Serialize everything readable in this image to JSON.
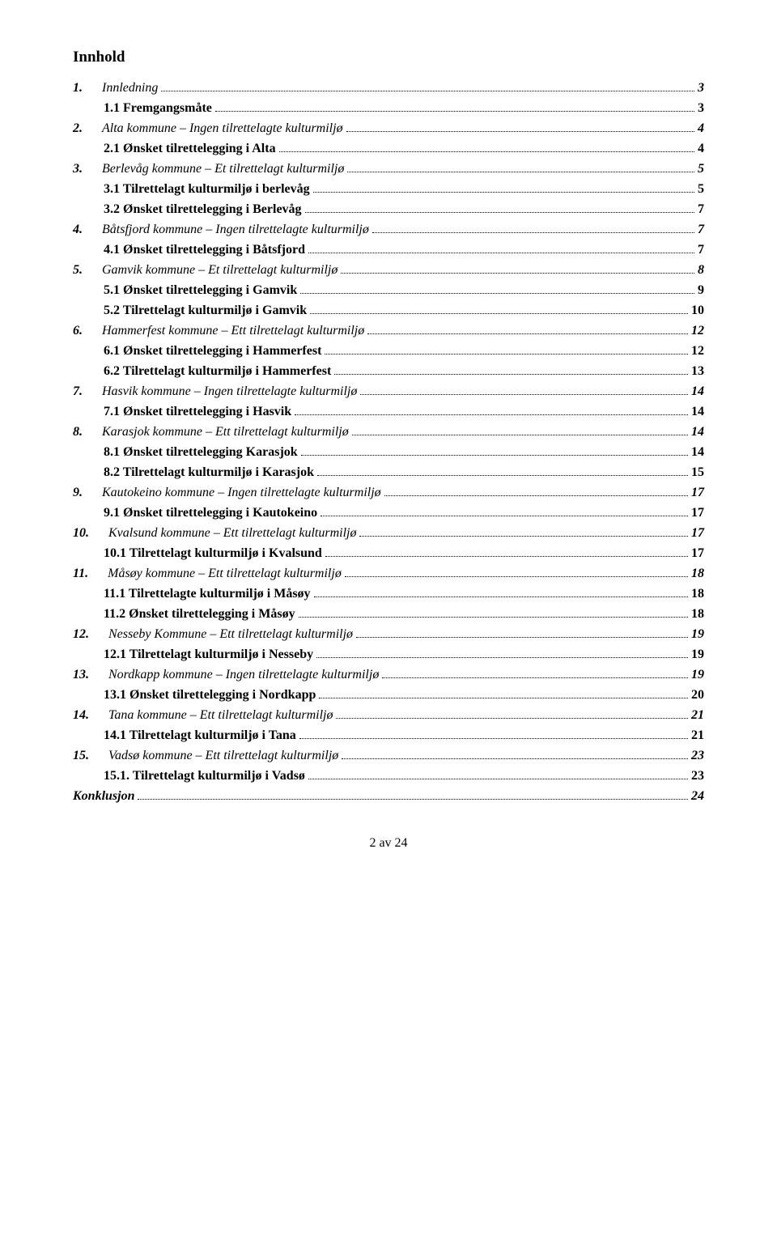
{
  "heading": "Innhold",
  "footer": "2 av 24",
  "toc": [
    {
      "level": 1,
      "num": "1.",
      "title": "Innledning",
      "page": "3"
    },
    {
      "level": 2,
      "num": "",
      "title": "1.1 Fremgangsmåte",
      "page": "3"
    },
    {
      "level": 1,
      "num": "2.",
      "title": "Alta kommune – Ingen tilrettelagte kulturmiljø",
      "page": "4"
    },
    {
      "level": 2,
      "num": "",
      "title": "2.1 Ønsket tilrettelegging i Alta",
      "page": "4"
    },
    {
      "level": 1,
      "num": "3.",
      "title": "Berlevåg kommune – Et tilrettelagt kulturmiljø",
      "page": "5"
    },
    {
      "level": 2,
      "num": "",
      "title": "3.1 Tilrettelagt kulturmiljø i berlevåg",
      "page": "5"
    },
    {
      "level": 2,
      "num": "",
      "title": "3.2 Ønsket tilrettelegging i Berlevåg",
      "page": "7"
    },
    {
      "level": 1,
      "num": "4.",
      "title": "Båtsfjord kommune – Ingen tilrettelagte kulturmiljø",
      "page": "7"
    },
    {
      "level": 2,
      "num": "",
      "title": "4.1 Ønsket tilrettelegging i Båtsfjord",
      "page": "7"
    },
    {
      "level": 1,
      "num": "5.",
      "title": "Gamvik kommune – Et tilrettelagt kulturmiljø",
      "page": "8"
    },
    {
      "level": 2,
      "num": "",
      "title": "5.1 Ønsket tilrettelegging i Gamvik",
      "page": "9"
    },
    {
      "level": 2,
      "num": "",
      "title": "5.2 Tilrettelagt kulturmiljø i Gamvik",
      "page": "10"
    },
    {
      "level": 1,
      "num": "6.",
      "title": "Hammerfest kommune – Ett tilrettelagt kulturmiljø",
      "page": "12"
    },
    {
      "level": 2,
      "num": "",
      "title": "6.1 Ønsket tilrettelegging i Hammerfest",
      "page": "12"
    },
    {
      "level": 2,
      "num": "",
      "title": "6.2 Tilrettelagt kulturmiljø i Hammerfest",
      "page": "13"
    },
    {
      "level": 1,
      "num": "7.",
      "title": "Hasvik kommune – Ingen tilrettelagte kulturmiljø",
      "page": "14"
    },
    {
      "level": 2,
      "num": "",
      "title": "7.1 Ønsket tilrettelegging i Hasvik",
      "page": "14"
    },
    {
      "level": 1,
      "num": "8.",
      "title": "Karasjok kommune – Ett tilrettelagt kulturmiljø",
      "page": "14"
    },
    {
      "level": 2,
      "num": "",
      "title": "8.1 Ønsket tilrettelegging Karasjok",
      "page": "14"
    },
    {
      "level": 2,
      "num": "",
      "title": "8.2 Tilrettelagt kulturmiljø i Karasjok",
      "page": "15"
    },
    {
      "level": 1,
      "num": "9.",
      "title": "Kautokeino kommune – Ingen tilrettelagte kulturmiljø",
      "page": "17"
    },
    {
      "level": 2,
      "num": "",
      "title": "9.1 Ønsket tilrettelegging i Kautokeino",
      "page": "17"
    },
    {
      "level": 1,
      "num": "10.",
      "title": "Kvalsund kommune – Ett tilrettelagt kulturmiljø",
      "page": "17"
    },
    {
      "level": 2,
      "num": "",
      "title": "10.1 Tilrettelagt kulturmiljø i Kvalsund",
      "page": "17"
    },
    {
      "level": 1,
      "num": "11.",
      "title": "Måsøy kommune – Ett tilrettelagt kulturmiljø",
      "page": "18"
    },
    {
      "level": 2,
      "num": "",
      "title": "11.1 Tilrettelagte kulturmiljø i Måsøy",
      "page": "18"
    },
    {
      "level": 2,
      "num": "",
      "title": "11.2 Ønsket tilrettelegging i Måsøy",
      "page": "18"
    },
    {
      "level": 1,
      "num": "12.",
      "title": "Nesseby Kommune – Ett tilrettelagt kulturmiljø",
      "page": "19"
    },
    {
      "level": 2,
      "num": "",
      "title": "12.1 Tilrettelagt kulturmiljø i Nesseby",
      "page": "19"
    },
    {
      "level": 1,
      "num": "13.",
      "title": "Nordkapp kommune – Ingen tilrettelagte kulturmiljø",
      "page": "19"
    },
    {
      "level": 2,
      "num": "",
      "title": "13.1 Ønsket tilrettelegging i Nordkapp",
      "page": "20"
    },
    {
      "level": 1,
      "num": "14.",
      "title": "Tana kommune – Ett tilrettelagt kulturmiljø",
      "page": "21"
    },
    {
      "level": 2,
      "num": "",
      "title": "14.1 Tilrettelagt kulturmiljø i Tana",
      "page": "21"
    },
    {
      "level": 1,
      "num": "15.",
      "title": "Vadsø kommune – Ett tilrettelagt kulturmiljø",
      "page": "23"
    },
    {
      "level": 2,
      "num": "",
      "title": "15.1. Tilrettelagt kulturmiljø i Vadsø",
      "page": "23"
    },
    {
      "level": 0,
      "num": "",
      "title": "Konklusjon",
      "page": "24"
    }
  ]
}
